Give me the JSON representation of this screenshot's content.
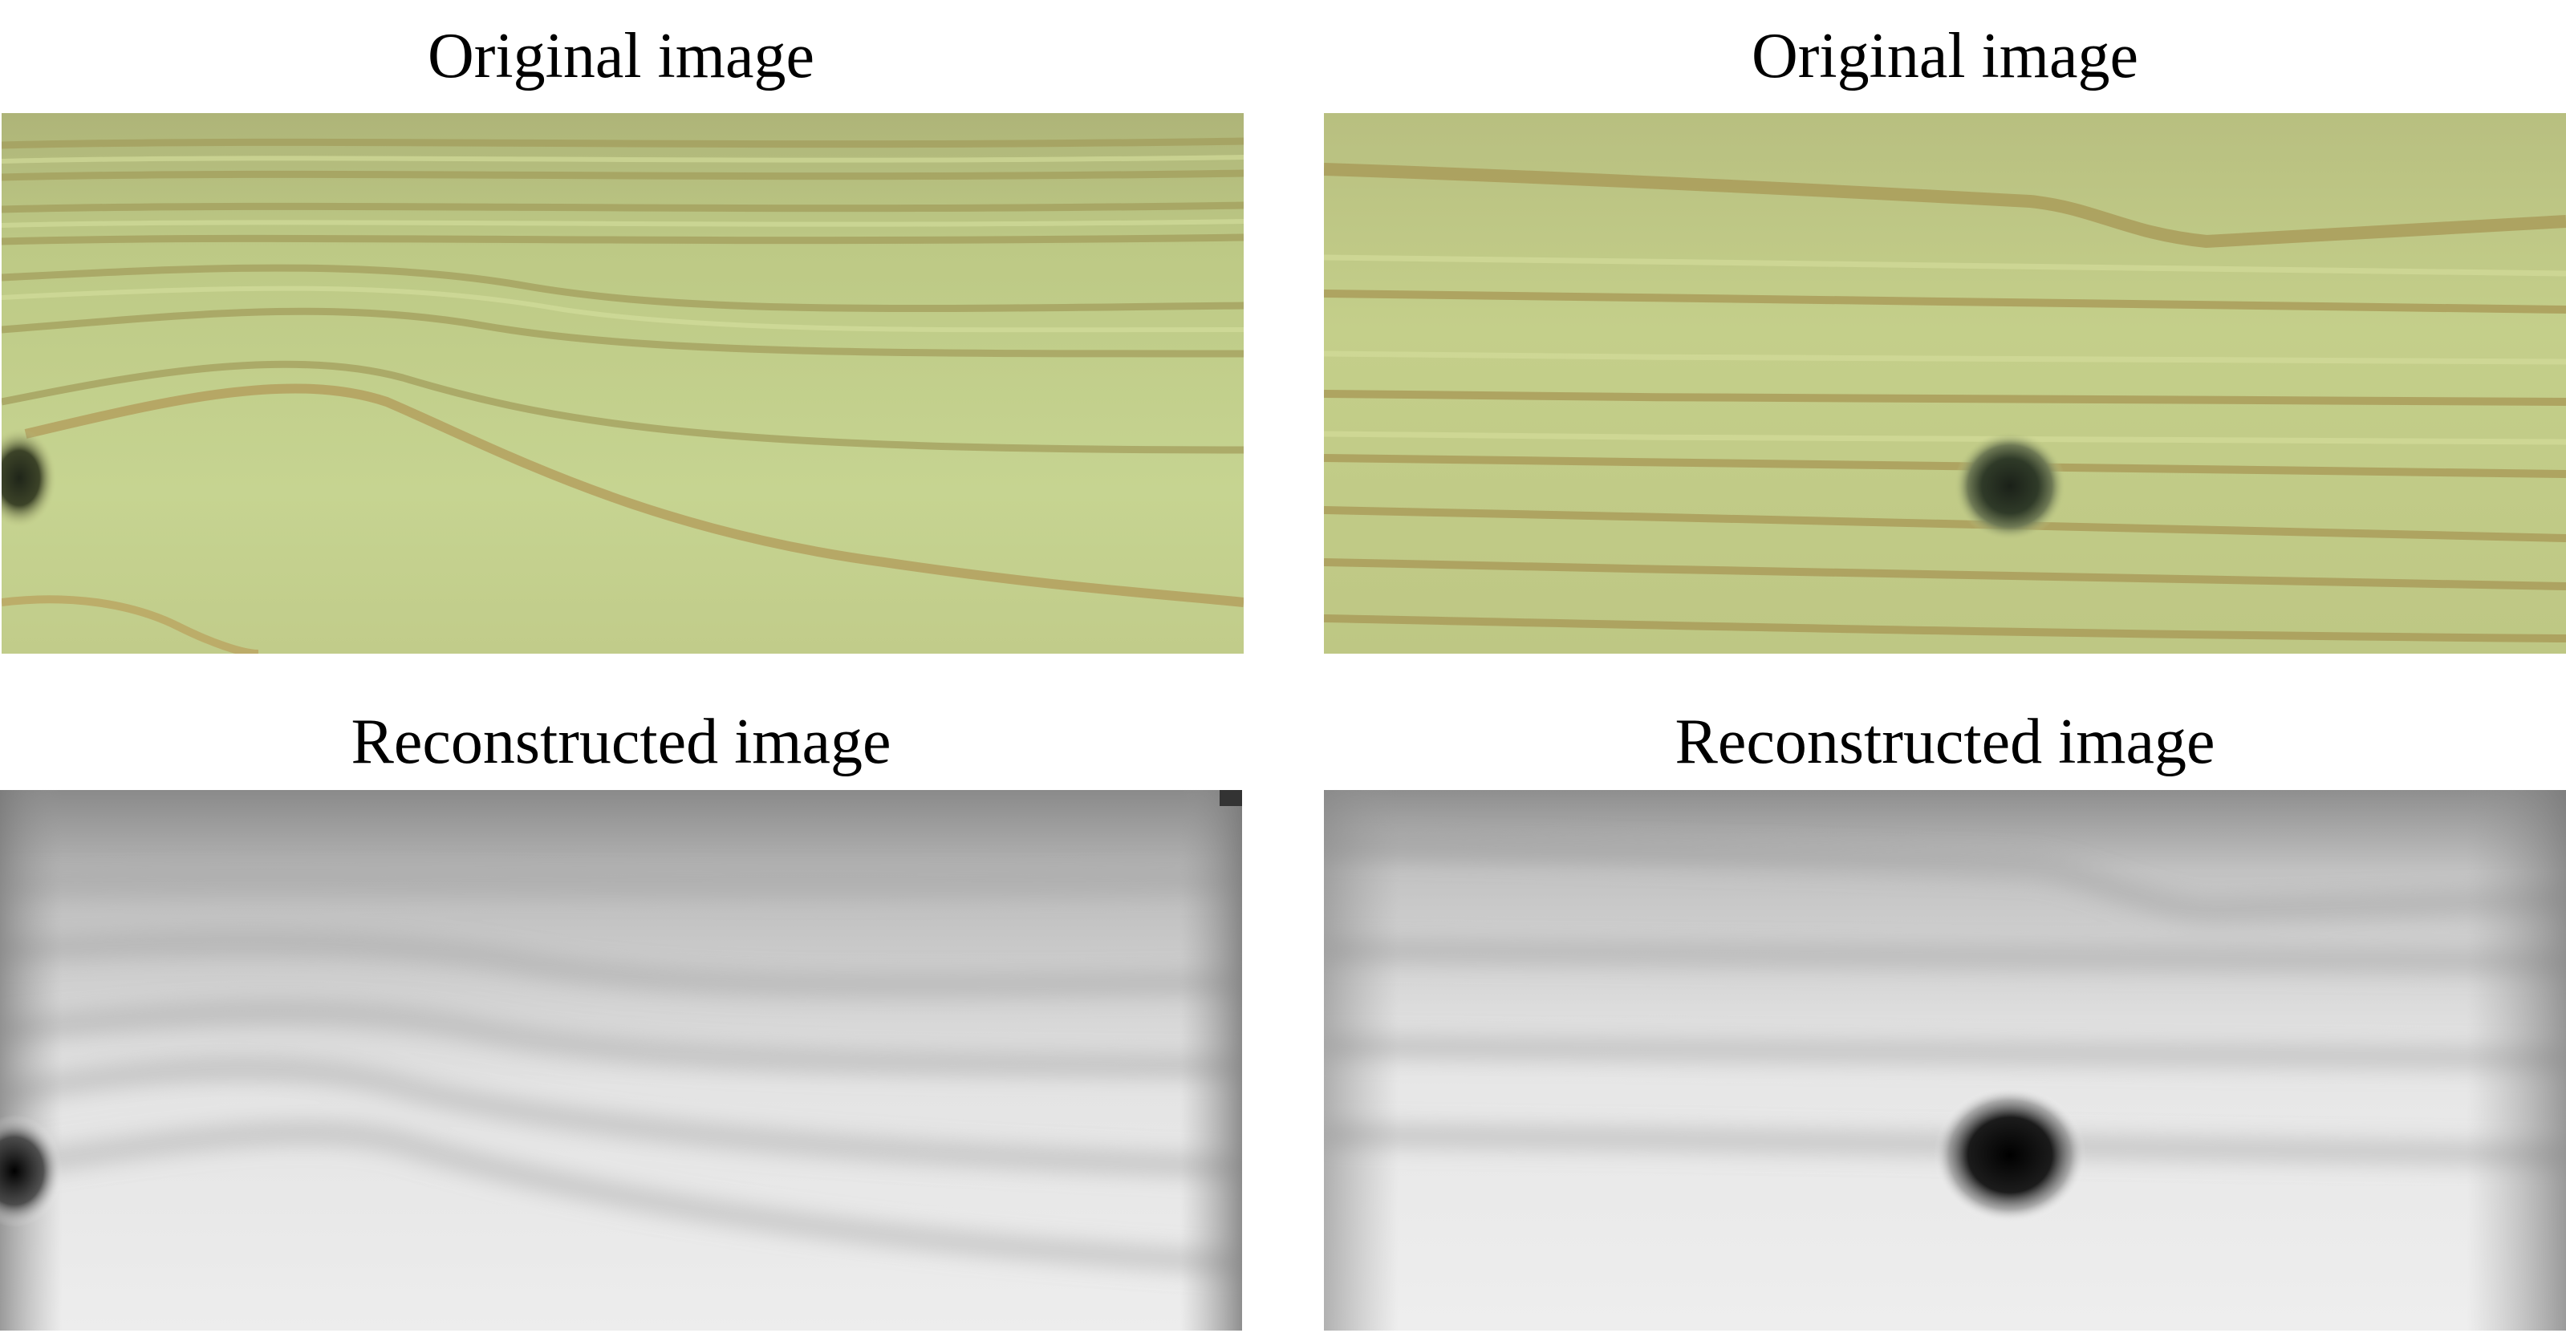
{
  "panels": {
    "top_left": {
      "caption": "Original image"
    },
    "top_right": {
      "caption": "Original image"
    },
    "bottom_left": {
      "caption": "Reconstructed image"
    },
    "bottom_right": {
      "caption": "Reconstructed image"
    }
  },
  "colors": {
    "wood_base": "#c4cf8c",
    "wood_grain": "#9a9a55",
    "knot": "#2a3020",
    "recon_light": "#f2f2f2",
    "recon_dark": "#111111",
    "recon_mid": "#a8a8a8"
  }
}
